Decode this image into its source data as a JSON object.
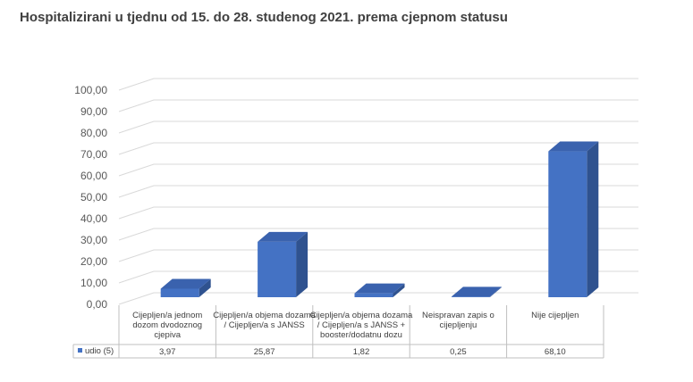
{
  "chart_data": {
    "type": "bar",
    "title": "Hospitalizirani u tjednu od 15. do 28. studenog 2021. prema cjepnom statusu",
    "categories": [
      [
        "Cijepljen/a jednom",
        "dozom dvodoznog",
        "cjepiva"
      ],
      [
        "Cijepljen/a objema dozama",
        "/ Cijepljen/a s JANSS"
      ],
      [
        "Cijepljen/a objema dozama",
        "/ Cijepljen/a s JANSS +",
        "booster/dodatnu dozu"
      ],
      [
        "Neispravan zapis o",
        "cijepljenju"
      ],
      [
        "Nije cijepljen"
      ]
    ],
    "series": [
      {
        "name": "udio (5)",
        "values": [
          3.97,
          25.87,
          1.82,
          0.25,
          68.1
        ],
        "labels": [
          "3,97",
          "25,87",
          "1,82",
          "0,25",
          "68,10"
        ]
      }
    ],
    "yticks": [
      "0,00",
      "10,00",
      "20,00",
      "30,00",
      "40,00",
      "50,00",
      "60,00",
      "70,00",
      "80,00",
      "90,00",
      "100,00"
    ],
    "ylim": [
      0,
      100
    ],
    "grid": true,
    "legend": "data-table",
    "colors": {
      "front": "#4472C4",
      "side": "#2F528F",
      "top": "#3A62AE",
      "grid": "#D9D9D9",
      "table": "#BFBFBF"
    }
  }
}
